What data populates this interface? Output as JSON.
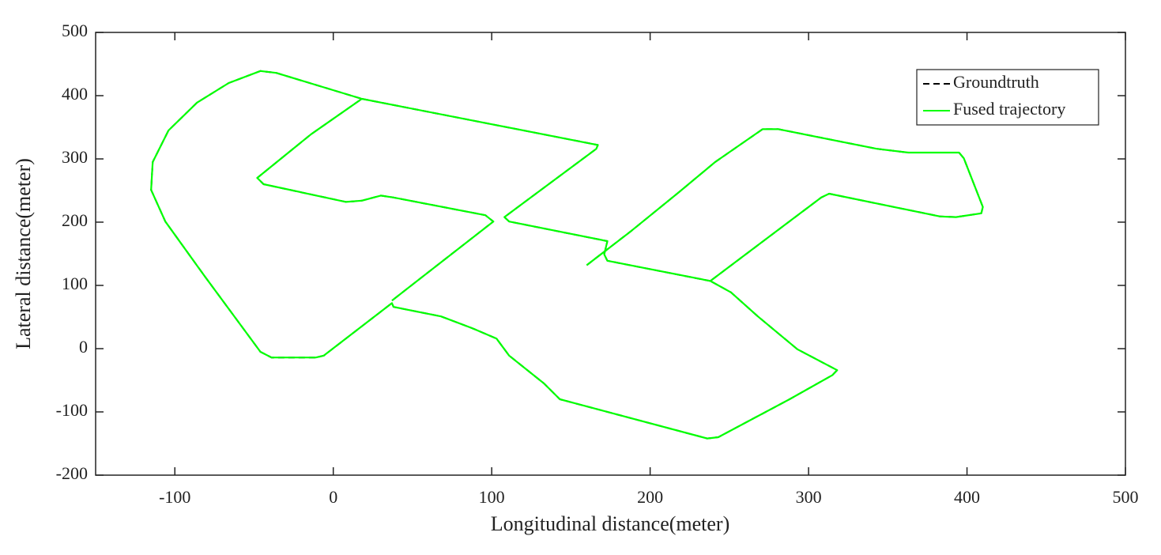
{
  "chart_data": {
    "type": "line",
    "xlabel": "Longitudinal distance(meter)",
    "ylabel": "Lateral distance(meter)",
    "xlim": [
      -150,
      500
    ],
    "xticks": [
      -100,
      0,
      100,
      200,
      300,
      400,
      500
    ],
    "ylim": [
      -200,
      500
    ],
    "yticks": [
      -200,
      -100,
      0,
      100,
      200,
      300,
      400,
      500
    ],
    "legend": "upper right",
    "x": [
      160,
      188,
      218,
      241,
      271,
      281,
      343,
      363,
      395,
      398,
      410,
      409,
      393,
      383,
      313,
      308,
      238,
      251,
      268,
      293,
      318,
      315,
      288,
      243,
      236,
      143,
      133,
      111,
      103,
      88,
      68,
      38,
      37,
      -6,
      -11,
      -39,
      -46,
      -81,
      -106,
      -115,
      -114,
      -104,
      -86,
      -66,
      -46,
      -36,
      18,
      -14,
      -48,
      -44,
      8,
      18,
      30,
      38,
      96,
      101,
      37,
      null,
      18,
      167,
      166,
      108,
      111,
      173,
      171,
      173,
      238
    ],
    "series": [
      {
        "name": "Groundtruth",
        "color": "#000000",
        "dashed": true,
        "values": [
          132,
          186,
          247,
          295,
          347,
          347,
          316,
          310,
          310,
          301,
          224,
          214,
          208,
          209,
          245,
          239,
          107,
          89,
          51,
          -1,
          -34,
          -42,
          -80,
          -140,
          -142,
          -80,
          -55,
          -11,
          16,
          32,
          51,
          66,
          72,
          -11,
          -14,
          -14,
          -5,
          114,
          201,
          251,
          295,
          345,
          389,
          420,
          439,
          436,
          395,
          339,
          270,
          260,
          232,
          234,
          242,
          239,
          211,
          201,
          76,
          null,
          395,
          322,
          316,
          208,
          201,
          170,
          149,
          139,
          107
        ]
      },
      {
        "name": "Fused trajectory",
        "color": "#00ff00",
        "dashed": false,
        "values": [
          132,
          186,
          247,
          295,
          347,
          347,
          316,
          310,
          310,
          301,
          224,
          214,
          208,
          209,
          245,
          239,
          107,
          89,
          51,
          -1,
          -34,
          -42,
          -80,
          -140,
          -142,
          -80,
          -55,
          -11,
          16,
          32,
          51,
          66,
          72,
          -11,
          -14,
          -14,
          -5,
          114,
          201,
          251,
          295,
          345,
          389,
          420,
          439,
          436,
          395,
          339,
          270,
          260,
          232,
          234,
          242,
          239,
          211,
          201,
          76,
          null,
          395,
          322,
          316,
          208,
          201,
          170,
          149,
          139,
          107
        ]
      }
    ]
  }
}
